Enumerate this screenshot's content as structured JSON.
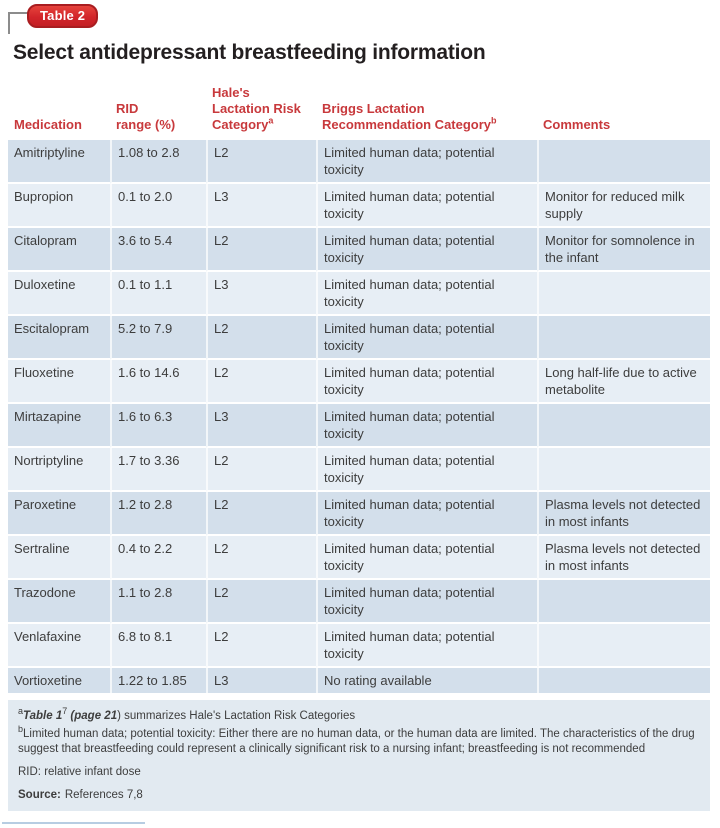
{
  "badge": "Table 2",
  "title": "Select antidepressant breastfeeding information",
  "table": {
    "columns": [
      {
        "id": "medication",
        "lines": [
          "Medication"
        ],
        "sup": ""
      },
      {
        "id": "rid",
        "lines": [
          "RID",
          "range (%)"
        ],
        "sup": ""
      },
      {
        "id": "hale",
        "lines": [
          "Hale's",
          "Lactation Risk",
          "Category"
        ],
        "sup": "a"
      },
      {
        "id": "briggs",
        "lines": [
          "Briggs Lactation",
          "Recommendation Category"
        ],
        "sup": "b"
      },
      {
        "id": "comments",
        "lines": [
          "Comments"
        ],
        "sup": ""
      }
    ],
    "rows": [
      {
        "medication": "Amitriptyline",
        "rid": "1.08 to 2.8",
        "hale": "L2",
        "briggs": "Limited human data; potential toxicity",
        "comments": ""
      },
      {
        "medication": "Bupropion",
        "rid": "0.1 to 2.0",
        "hale": "L3",
        "briggs": "Limited human data; potential toxicity",
        "comments": "Monitor for reduced milk supply"
      },
      {
        "medication": "Citalopram",
        "rid": "3.6 to 5.4",
        "hale": "L2",
        "briggs": "Limited human data; potential toxicity",
        "comments": "Monitor for somnolence in the infant"
      },
      {
        "medication": "Duloxetine",
        "rid": "0.1 to 1.1",
        "hale": "L3",
        "briggs": "Limited human data; potential toxicity",
        "comments": ""
      },
      {
        "medication": "Escitalopram",
        "rid": "5.2 to 7.9",
        "hale": "L2",
        "briggs": "Limited human data; potential toxicity",
        "comments": ""
      },
      {
        "medication": "Fluoxetine",
        "rid": "1.6 to 14.6",
        "hale": "L2",
        "briggs": "Limited human data; potential toxicity",
        "comments": "Long half-life due to active metabolite"
      },
      {
        "medication": "Mirtazapine",
        "rid": "1.6 to 6.3",
        "hale": "L3",
        "briggs": "Limited human data; potential toxicity",
        "comments": ""
      },
      {
        "medication": "Nortriptyline",
        "rid": "1.7 to 3.36",
        "hale": "L2",
        "briggs": "Limited human data; potential toxicity",
        "comments": ""
      },
      {
        "medication": "Paroxetine",
        "rid": "1.2 to 2.8",
        "hale": "L2",
        "briggs": "Limited human data; potential toxicity",
        "comments": "Plasma levels not detected in most infants"
      },
      {
        "medication": "Sertraline",
        "rid": "0.4 to 2.2",
        "hale": "L2",
        "briggs": "Limited human data; potential toxicity",
        "comments": "Plasma levels not detected in most infants"
      },
      {
        "medication": "Trazodone",
        "rid": "1.1 to 2.8",
        "hale": "L2",
        "briggs": "Limited human data; potential toxicity",
        "comments": ""
      },
      {
        "medication": "Venlafaxine",
        "rid": "6.8 to 8.1",
        "hale": "L2",
        "briggs": "Limited human data; potential toxicity",
        "comments": ""
      },
      {
        "medication": "Vortioxetine",
        "rid": "1.22 to 1.85",
        "hale": "L3",
        "briggs": "No rating available",
        "comments": ""
      }
    ]
  },
  "footnotes": {
    "a": {
      "marker": "a",
      "segments": [
        {
          "text": "Table 1",
          "style": "bold-italic"
        },
        {
          "text": "7",
          "style": "sup"
        },
        {
          "text": " (page 21",
          "style": "bold-italic"
        },
        {
          "text": ") summarizes Hale's Lactation Risk Categories",
          "style": "normal"
        }
      ]
    },
    "b": {
      "marker": "b",
      "text": "Limited human data; potential toxicity: Either there are no human data, or the human data are limited. The characteristics of the drug suggest that breastfeeding could represent a clinically significant risk to a nursing infant; breastfeeding is not recommended"
    },
    "rid_definition": "RID: relative infant dose",
    "source": {
      "label": "Source:",
      "text": "References 7,8"
    }
  },
  "colors": {
    "accent_red": "#d2252a",
    "header_text_red": "#c8393c",
    "row_dark": "#d3dfeb",
    "row_light": "#e7eef5",
    "footnote_bg": "#e2eaf1",
    "bottom_rule": "#b7cde2"
  }
}
